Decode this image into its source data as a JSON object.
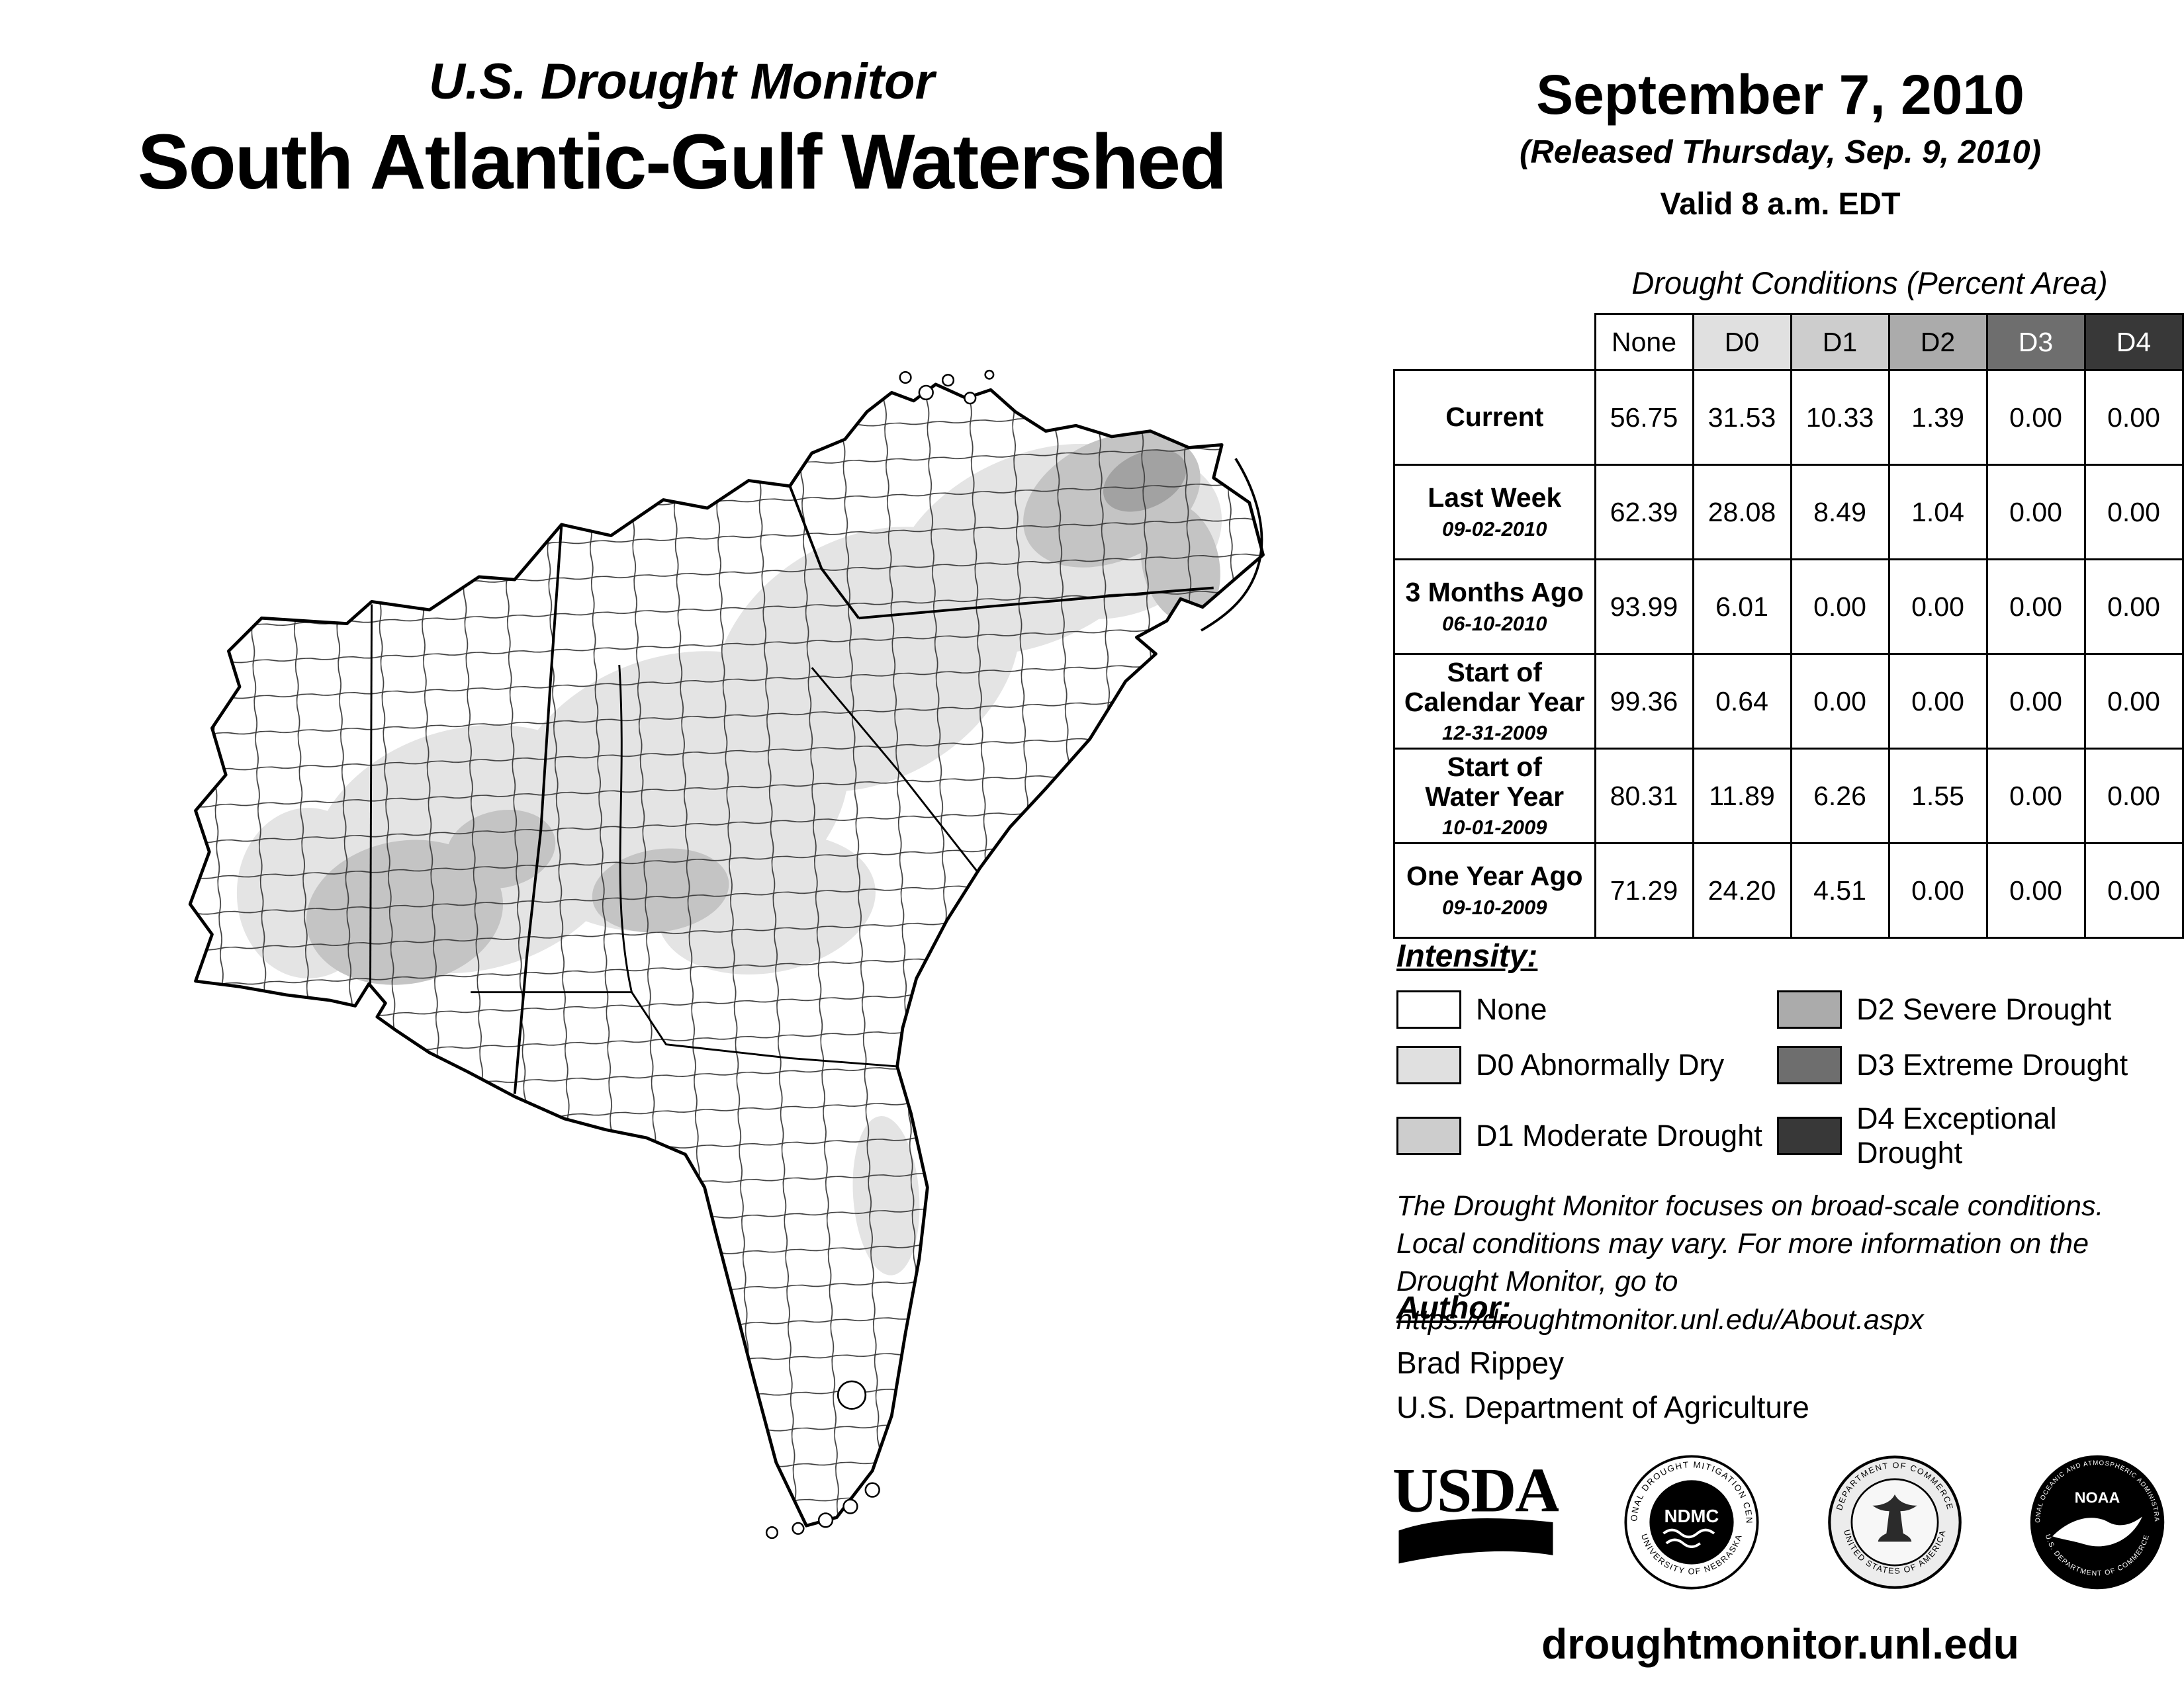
{
  "header": {
    "program": "U.S. Drought Monitor",
    "region": "South Atlantic-Gulf Watershed",
    "date": "September 7, 2010",
    "released": "(Released Thursday, Sep. 9, 2010)",
    "valid": "Valid 8 a.m. EDT"
  },
  "table": {
    "title": "Drought Conditions (Percent Area)",
    "columns": [
      {
        "label": "None",
        "bg": "#ffffff",
        "fg": "#000000"
      },
      {
        "label": "D0",
        "bg": "#e0e0e0",
        "fg": "#000000"
      },
      {
        "label": "D1",
        "bg": "#cdcdcd",
        "fg": "#000000"
      },
      {
        "label": "D2",
        "bg": "#ababab",
        "fg": "#000000"
      },
      {
        "label": "D3",
        "bg": "#6e6e6e",
        "fg": "#ffffff"
      },
      {
        "label": "D4",
        "bg": "#383838",
        "fg": "#ffffff"
      }
    ],
    "rows": [
      {
        "label": "Current",
        "sublabel": "",
        "values": [
          "56.75",
          "31.53",
          "10.33",
          "1.39",
          "0.00",
          "0.00"
        ]
      },
      {
        "label": "Last Week",
        "sublabel": "09-02-2010",
        "values": [
          "62.39",
          "28.08",
          "8.49",
          "1.04",
          "0.00",
          "0.00"
        ]
      },
      {
        "label": "3 Months Ago",
        "sublabel": "06-10-2010",
        "values": [
          "93.99",
          "6.01",
          "0.00",
          "0.00",
          "0.00",
          "0.00"
        ]
      },
      {
        "label": "Start of\nCalendar Year",
        "sublabel": "12-31-2009",
        "values": [
          "99.36",
          "0.64",
          "0.00",
          "0.00",
          "0.00",
          "0.00"
        ]
      },
      {
        "label": "Start of\nWater Year",
        "sublabel": "10-01-2009",
        "values": [
          "80.31",
          "11.89",
          "6.26",
          "1.55",
          "0.00",
          "0.00"
        ]
      },
      {
        "label": "One Year Ago",
        "sublabel": "09-10-2009",
        "values": [
          "71.29",
          "24.20",
          "4.51",
          "0.00",
          "0.00",
          "0.00"
        ]
      }
    ]
  },
  "legend": {
    "title": "Intensity:",
    "items": [
      {
        "label": "None",
        "color": "#ffffff"
      },
      {
        "label": "D0 Abnormally Dry",
        "color": "#e0e0e0"
      },
      {
        "label": "D1 Moderate Drought",
        "color": "#cdcdcd"
      },
      {
        "label": "D2 Severe Drought",
        "color": "#ababab"
      },
      {
        "label": "D3 Extreme Drought",
        "color": "#6e6e6e"
      },
      {
        "label": "D4 Exceptional Drought",
        "color": "#383838"
      }
    ]
  },
  "disclaimer": {
    "lines": [
      "The Drought Monitor focuses on broad-scale conditions.",
      "Local conditions may vary. For more information on the",
      "Drought Monitor, go to https://droughtmonitor.unl.edu/About.aspx"
    ]
  },
  "author": {
    "title": "Author:",
    "name": "Brad Rippey",
    "org": "U.S. Department of Agriculture"
  },
  "logos": {
    "usda": {
      "text": "USDA"
    },
    "ndmc": {
      "text": "NDMC",
      "ring_top": "NATIONAL DROUGHT MITIGATION CENTER",
      "ring_bottom": "UNIVERSITY OF NEBRASKA"
    },
    "doc": {
      "ring_top": "DEPARTMENT OF COMMERCE",
      "ring_bottom": "UNITED STATES OF AMERICA"
    },
    "noaa": {
      "text": "NOAA",
      "ring_top": "NATIONAL OCEANIC AND ATMOSPHERIC ADMINISTRATION",
      "ring_bottom": "U.S. DEPARTMENT OF COMMERCE"
    }
  },
  "footer": {
    "url": "droughtmonitor.unl.edu"
  },
  "map_colors": {
    "none": "#ffffff",
    "d0": "#e4e4e4",
    "d1": "#c4c4c4",
    "d2": "#a2a2a2"
  }
}
